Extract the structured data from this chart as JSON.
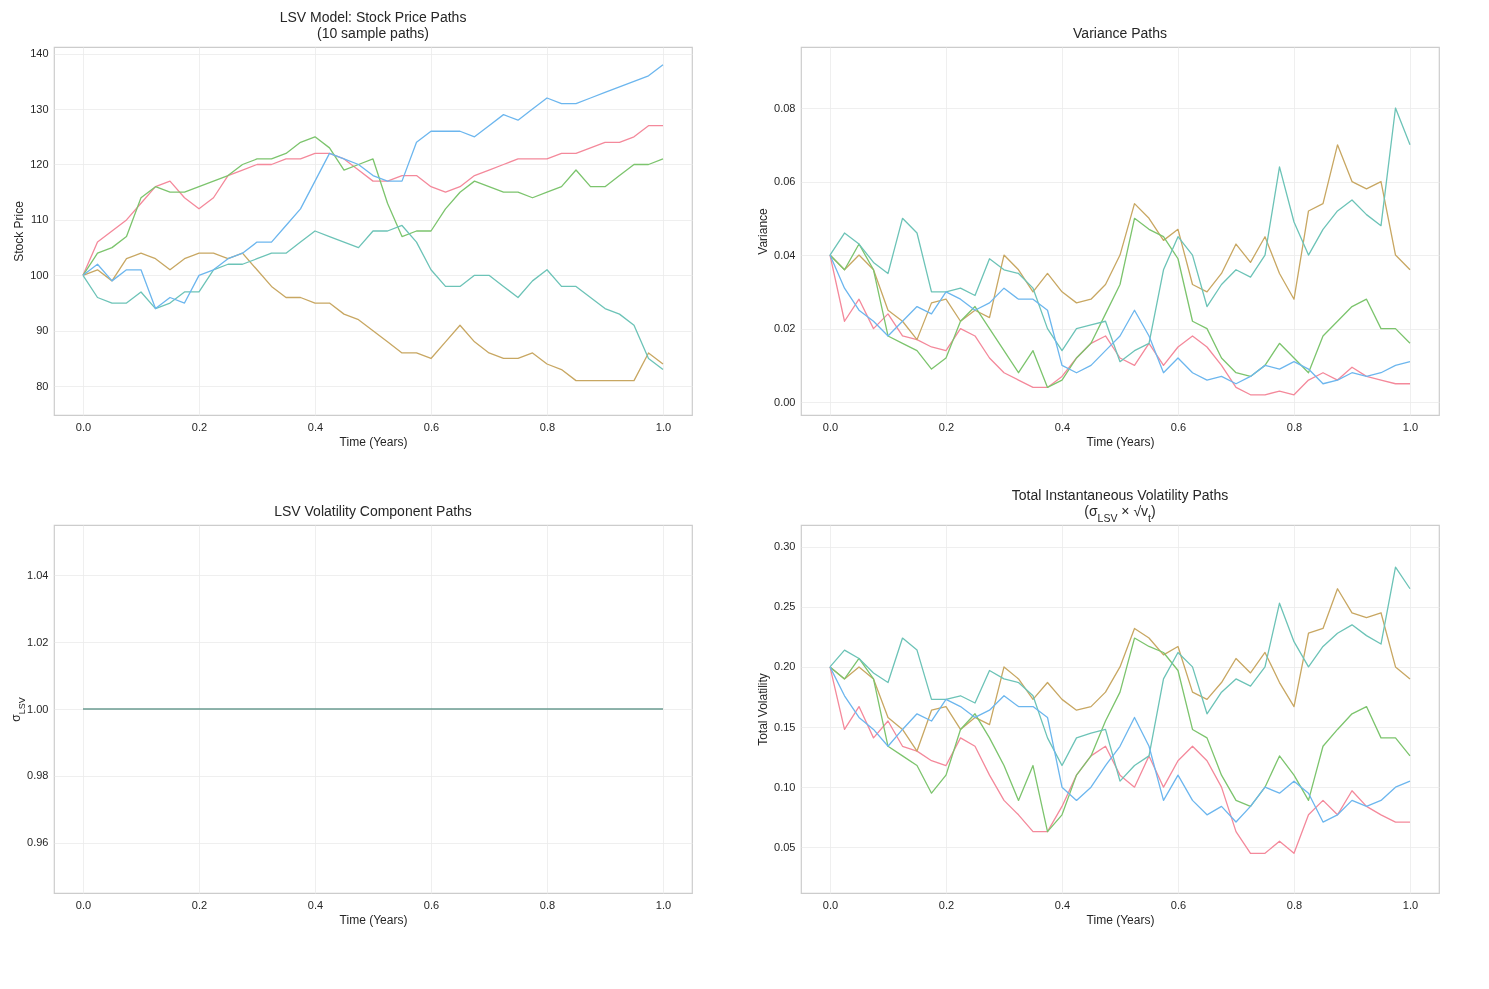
{
  "chart_data": [
    {
      "type": "line",
      "title": "LSV Model: Stock Price Paths\n(10 sample paths)",
      "xlabel": "Time (Years)",
      "ylabel": "Stock Price",
      "grid": true,
      "x": [
        0,
        0.025,
        0.05,
        0.075,
        0.1,
        0.125,
        0.15,
        0.175,
        0.2,
        0.225,
        0.25,
        0.275,
        0.3,
        0.325,
        0.35,
        0.375,
        0.4,
        0.425,
        0.45,
        0.475,
        0.5,
        0.525,
        0.55,
        0.575,
        0.6,
        0.625,
        0.65,
        0.675,
        0.7,
        0.725,
        0.75,
        0.775,
        0.8,
        0.825,
        0.85,
        0.875,
        0.9,
        0.925,
        0.95,
        0.975,
        1
      ],
      "xlim": [
        -0.05,
        1.05
      ],
      "ylim": [
        74.8,
        141.2
      ],
      "xticks": [
        {
          "value": 0,
          "label": "0.0"
        },
        {
          "value": 0.2,
          "label": "0.2"
        },
        {
          "value": 0.4,
          "label": "0.4"
        },
        {
          "value": 0.6,
          "label": "0.6"
        },
        {
          "value": 0.8,
          "label": "0.8"
        },
        {
          "value": 1,
          "label": "1.0"
        }
      ],
      "yticks": [
        80,
        90,
        100,
        110,
        120,
        130,
        140
      ],
      "series": [
        {
          "color": "#f4899b",
          "values": [
            100,
            106,
            108,
            110,
            113,
            116,
            117,
            114,
            112,
            114,
            118,
            119,
            120,
            120,
            121,
            121,
            122,
            122,
            121,
            119,
            117,
            117,
            118,
            118,
            116,
            115,
            116,
            118,
            119,
            120,
            121,
            121,
            121,
            122,
            122,
            123,
            124,
            124,
            125,
            127,
            127
          ]
        },
        {
          "color": "#c8a762",
          "values": [
            100,
            101,
            99,
            103,
            104,
            103,
            101,
            103,
            104,
            104,
            103,
            104,
            101,
            98,
            96,
            96,
            95,
            95,
            93,
            92,
            90,
            88,
            86,
            86,
            85,
            88,
            91,
            88,
            86,
            85,
            85,
            86,
            84,
            83,
            81,
            81,
            81,
            81,
            81,
            86,
            84
          ]
        },
        {
          "color": "#7cc46d",
          "values": [
            100,
            104,
            105,
            107,
            114,
            116,
            115,
            115,
            116,
            117,
            118,
            120,
            121,
            121,
            122,
            124,
            125,
            123,
            119,
            120,
            121,
            113,
            107,
            108,
            108,
            112,
            115,
            117,
            116,
            115,
            115,
            114,
            115,
            116,
            119,
            116,
            116,
            118,
            120,
            120,
            121
          ]
        },
        {
          "color": "#6cc3b7",
          "values": [
            100,
            96,
            95,
            95,
            97,
            94,
            95,
            97,
            97,
            101,
            102,
            102,
            103,
            104,
            104,
            106,
            108,
            107,
            106,
            105,
            108,
            108,
            109,
            106,
            101,
            98,
            98,
            100,
            100,
            98,
            96,
            99,
            101,
            98,
            98,
            96,
            94,
            93,
            91,
            85,
            83
          ]
        },
        {
          "color": "#6cb6ee",
          "values": [
            100,
            102,
            99,
            101,
            101,
            94,
            96,
            95,
            100,
            101,
            103,
            104,
            106,
            106,
            109,
            112,
            117,
            122,
            121,
            120,
            118,
            117,
            117,
            124,
            126,
            126,
            126,
            125,
            127,
            129,
            128,
            130,
            132,
            131,
            131,
            132,
            133,
            134,
            135,
            136,
            138
          ]
        }
      ]
    },
    {
      "type": "line",
      "title": "Variance Paths",
      "xlabel": "Time (Years)",
      "ylabel": "Variance",
      "grid": true,
      "x": [
        0,
        0.025,
        0.05,
        0.075,
        0.1,
        0.125,
        0.15,
        0.175,
        0.2,
        0.225,
        0.25,
        0.275,
        0.3,
        0.325,
        0.35,
        0.375,
        0.4,
        0.425,
        0.45,
        0.475,
        0.5,
        0.525,
        0.55,
        0.575,
        0.6,
        0.625,
        0.65,
        0.675,
        0.7,
        0.725,
        0.75,
        0.775,
        0.8,
        0.825,
        0.85,
        0.875,
        0.9,
        0.925,
        0.95,
        0.975,
        1
      ],
      "xlim": [
        -0.05,
        1.05
      ],
      "ylim": [
        -0.0035,
        0.0966
      ],
      "xticks": [
        {
          "value": 0,
          "label": "0.0"
        },
        {
          "value": 0.2,
          "label": "0.2"
        },
        {
          "value": 0.4,
          "label": "0.4"
        },
        {
          "value": 0.6,
          "label": "0.6"
        },
        {
          "value": 0.8,
          "label": "0.8"
        },
        {
          "value": 1,
          "label": "1.0"
        }
      ],
      "yticks": [
        {
          "value": 0,
          "label": "0.00"
        },
        {
          "value": 0.02,
          "label": "0.02"
        },
        {
          "value": 0.04,
          "label": "0.04"
        },
        {
          "value": 0.06,
          "label": "0.06"
        },
        {
          "value": 0.08,
          "label": "0.08"
        }
      ],
      "series": [
        {
          "color": "#f4899b",
          "values": [
            0.04,
            0.022,
            0.028,
            0.02,
            0.024,
            0.018,
            0.017,
            0.015,
            0.014,
            0.02,
            0.018,
            0.012,
            0.008,
            0.006,
            0.004,
            0.004,
            0.007,
            0.012,
            0.016,
            0.018,
            0.012,
            0.01,
            0.016,
            0.01,
            0.015,
            0.018,
            0.015,
            0.01,
            0.004,
            0.002,
            0.002,
            0.003,
            0.002,
            0.006,
            0.008,
            0.006,
            0.0095,
            0.007,
            0.006,
            0.005,
            0.005
          ]
        },
        {
          "color": "#c8a762",
          "values": [
            0.04,
            0.036,
            0.04,
            0.036,
            0.025,
            0.022,
            0.017,
            0.027,
            0.028,
            0.022,
            0.025,
            0.023,
            0.04,
            0.036,
            0.03,
            0.035,
            0.03,
            0.027,
            0.028,
            0.032,
            0.04,
            0.054,
            0.05,
            0.044,
            0.047,
            0.032,
            0.03,
            0.035,
            0.043,
            0.038,
            0.045,
            0.035,
            0.028,
            0.052,
            0.054,
            0.07,
            0.06,
            0.058,
            0.06,
            0.04,
            0.036
          ]
        },
        {
          "color": "#7cc46d",
          "values": [
            0.04,
            0.036,
            0.043,
            0.036,
            0.018,
            0.016,
            0.014,
            0.009,
            0.012,
            0.022,
            0.026,
            0.02,
            0.014,
            0.008,
            0.014,
            0.004,
            0.006,
            0.012,
            0.016,
            0.024,
            0.032,
            0.05,
            0.047,
            0.045,
            0.039,
            0.022,
            0.02,
            0.012,
            0.008,
            0.007,
            0.01,
            0.016,
            0.012,
            0.008,
            0.018,
            0.022,
            0.026,
            0.028,
            0.02,
            0.02,
            0.016
          ]
        },
        {
          "color": "#6cc3b7",
          "values": [
            0.04,
            0.046,
            0.043,
            0.038,
            0.035,
            0.05,
            0.046,
            0.03,
            0.03,
            0.031,
            0.029,
            0.039,
            0.036,
            0.035,
            0.031,
            0.02,
            0.014,
            0.02,
            0.021,
            0.022,
            0.011,
            0.014,
            0.016,
            0.036,
            0.045,
            0.04,
            0.026,
            0.032,
            0.036,
            0.034,
            0.04,
            0.064,
            0.049,
            0.04,
            0.047,
            0.052,
            0.055,
            0.051,
            0.048,
            0.08,
            0.07
          ]
        },
        {
          "color": "#6cb6ee",
          "values": [
            0.04,
            0.031,
            0.025,
            0.022,
            0.018,
            0.022,
            0.026,
            0.024,
            0.03,
            0.028,
            0.025,
            0.027,
            0.031,
            0.028,
            0.028,
            0.025,
            0.01,
            0.008,
            0.01,
            0.014,
            0.018,
            0.025,
            0.018,
            0.008,
            0.012,
            0.008,
            0.006,
            0.007,
            0.005,
            0.007,
            0.01,
            0.009,
            0.011,
            0.009,
            0.005,
            0.006,
            0.008,
            0.007,
            0.008,
            0.01,
            0.011
          ]
        }
      ]
    },
    {
      "type": "line",
      "title": "LSV Volatility Component Paths",
      "xlabel": "Time (Years)",
      "ylabel": "σ$_{LSV}$",
      "grid": true,
      "x": [
        0,
        1
      ],
      "xlim": [
        -0.05,
        1.05
      ],
      "ylim": [
        0.945,
        1.055
      ],
      "xticks": [
        {
          "value": 0,
          "label": "0.0"
        },
        {
          "value": 0.2,
          "label": "0.2"
        },
        {
          "value": 0.4,
          "label": "0.4"
        },
        {
          "value": 0.6,
          "label": "0.6"
        },
        {
          "value": 0.8,
          "label": "0.8"
        },
        {
          "value": 1,
          "label": "1.0"
        }
      ],
      "yticks": [
        0.96,
        0.98,
        {
          "value": 1,
          "label": "1.00"
        },
        1.02,
        1.04
      ],
      "series": [
        {
          "color": "#6a9b90",
          "values": [
            1,
            1
          ]
        }
      ]
    },
    {
      "type": "line",
      "title": "Total Instantaneous Volatility Paths\n(σ$_{LSV}$ × √v$_{t}$)",
      "xlabel": "Time (Years)",
      "ylabel": "Total Volatility",
      "grid": true,
      "x": [
        0,
        0.025,
        0.05,
        0.075,
        0.1,
        0.125,
        0.15,
        0.175,
        0.2,
        0.225,
        0.25,
        0.275,
        0.3,
        0.325,
        0.35,
        0.375,
        0.4,
        0.425,
        0.45,
        0.475,
        0.5,
        0.525,
        0.55,
        0.575,
        0.6,
        0.625,
        0.65,
        0.675,
        0.7,
        0.725,
        0.75,
        0.775,
        0.8,
        0.825,
        0.85,
        0.875,
        0.9,
        0.925,
        0.95,
        0.975,
        1
      ],
      "xlim": [
        -0.05,
        1.05
      ],
      "ylim": [
        0.012,
        0.318
      ],
      "xticks": [
        {
          "value": 0,
          "label": "0.0"
        },
        {
          "value": 0.2,
          "label": "0.2"
        },
        {
          "value": 0.4,
          "label": "0.4"
        },
        {
          "value": 0.6,
          "label": "0.6"
        },
        {
          "value": 0.8,
          "label": "0.8"
        },
        {
          "value": 1,
          "label": "1.0"
        }
      ],
      "yticks": [
        0.05,
        {
          "value": 0.1,
          "label": "0.10"
        },
        0.15,
        {
          "value": 0.2,
          "label": "0.20"
        },
        0.25,
        {
          "value": 0.3,
          "label": "0.30"
        }
      ],
      "series": [
        {
          "color": "#f4899b",
          "values": [
            0.2,
            0.148,
            0.167,
            0.141,
            0.155,
            0.134,
            0.13,
            0.122,
            0.118,
            0.141,
            0.134,
            0.11,
            0.089,
            0.077,
            0.063,
            0.063,
            0.084,
            0.11,
            0.126,
            0.134,
            0.11,
            0.1,
            0.126,
            0.1,
            0.122,
            0.134,
            0.122,
            0.1,
            0.063,
            0.045,
            0.045,
            0.055,
            0.045,
            0.077,
            0.089,
            0.077,
            0.097,
            0.084,
            0.077,
            0.071,
            0.071
          ]
        },
        {
          "color": "#c8a762",
          "values": [
            0.2,
            0.19,
            0.2,
            0.19,
            0.158,
            0.148,
            0.13,
            0.164,
            0.167,
            0.148,
            0.158,
            0.152,
            0.2,
            0.19,
            0.173,
            0.187,
            0.173,
            0.164,
            0.167,
            0.179,
            0.2,
            0.232,
            0.224,
            0.21,
            0.217,
            0.179,
            0.173,
            0.187,
            0.207,
            0.195,
            0.212,
            0.187,
            0.167,
            0.228,
            0.232,
            0.265,
            0.245,
            0.241,
            0.245,
            0.2,
            0.19
          ]
        },
        {
          "color": "#7cc46d",
          "values": [
            0.2,
            0.19,
            0.207,
            0.19,
            0.134,
            0.126,
            0.118,
            0.095,
            0.11,
            0.148,
            0.161,
            0.141,
            0.118,
            0.089,
            0.118,
            0.063,
            0.077,
            0.11,
            0.126,
            0.155,
            0.179,
            0.224,
            0.217,
            0.212,
            0.197,
            0.148,
            0.141,
            0.11,
            0.089,
            0.084,
            0.1,
            0.126,
            0.11,
            0.089,
            0.134,
            0.148,
            0.161,
            0.167,
            0.141,
            0.141,
            0.126
          ]
        },
        {
          "color": "#6cc3b7",
          "values": [
            0.2,
            0.214,
            0.207,
            0.195,
            0.187,
            0.224,
            0.214,
            0.173,
            0.173,
            0.176,
            0.17,
            0.197,
            0.19,
            0.187,
            0.176,
            0.141,
            0.118,
            0.141,
            0.145,
            0.148,
            0.105,
            0.118,
            0.126,
            0.19,
            0.212,
            0.2,
            0.161,
            0.179,
            0.19,
            0.184,
            0.2,
            0.253,
            0.221,
            0.2,
            0.217,
            0.228,
            0.235,
            0.226,
            0.219,
            0.283,
            0.265
          ]
        },
        {
          "color": "#6cb6ee",
          "values": [
            0.2,
            0.176,
            0.158,
            0.148,
            0.134,
            0.148,
            0.161,
            0.155,
            0.173,
            0.167,
            0.158,
            0.164,
            0.176,
            0.167,
            0.167,
            0.158,
            0.1,
            0.089,
            0.1,
            0.118,
            0.134,
            0.158,
            0.134,
            0.089,
            0.11,
            0.089,
            0.077,
            0.084,
            0.071,
            0.084,
            0.1,
            0.095,
            0.105,
            0.095,
            0.071,
            0.077,
            0.089,
            0.084,
            0.089,
            0.1,
            0.105
          ]
        }
      ]
    }
  ]
}
